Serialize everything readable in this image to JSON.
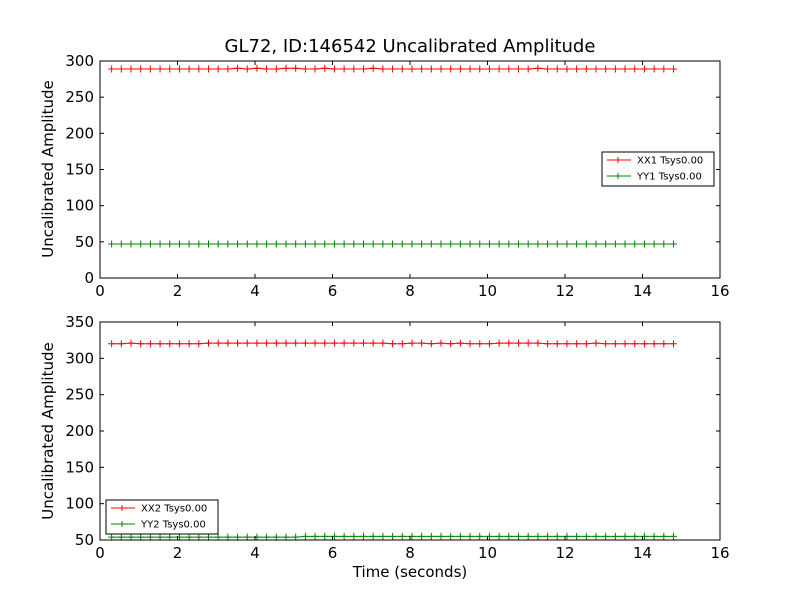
{
  "chart_data": [
    {
      "type": "line",
      "title": "GL72, ID:146542 Uncalibrated Amplitude",
      "xlabel": "",
      "ylabel": "Uncalibrated Amplitude",
      "xlim": [
        0,
        16
      ],
      "ylim": [
        0,
        300
      ],
      "xticks": [
        "0",
        "2",
        "4",
        "6",
        "8",
        "10",
        "12",
        "14",
        "16"
      ],
      "yticks": [
        "0",
        "50",
        "100",
        "150",
        "200",
        "250",
        "300"
      ],
      "legend_position": "center-right",
      "grid": false,
      "series": [
        {
          "name": "XX1 Tsys0.00",
          "color": "#ff0000",
          "marker": "plus",
          "x": [
            0.3,
            0.55,
            0.8,
            1.05,
            1.3,
            1.55,
            1.8,
            2.05,
            2.3,
            2.55,
            2.8,
            3.05,
            3.3,
            3.55,
            3.8,
            4.05,
            4.3,
            4.55,
            4.8,
            5.05,
            5.3,
            5.55,
            5.8,
            6.05,
            6.3,
            6.55,
            6.8,
            7.05,
            7.3,
            7.55,
            7.8,
            8.05,
            8.3,
            8.55,
            8.8,
            9.05,
            9.3,
            9.55,
            9.8,
            10.05,
            10.3,
            10.55,
            10.8,
            11.05,
            11.3,
            11.55,
            11.8,
            12.05,
            12.3,
            12.55,
            12.8,
            13.05,
            13.3,
            13.55,
            13.8,
            14.05,
            14.3,
            14.55,
            14.8
          ],
          "values": [
            289,
            289,
            289,
            289,
            289,
            289,
            289,
            289,
            289,
            289,
            289,
            289,
            289,
            290,
            289,
            290,
            289,
            289,
            290,
            290,
            289,
            289,
            290,
            289,
            289,
            289,
            289,
            290,
            289,
            289,
            289,
            289,
            289,
            289,
            289,
            289,
            289,
            289,
            289,
            289,
            289,
            289,
            289,
            289,
            290,
            289,
            289,
            289,
            289,
            289,
            289,
            289,
            289,
            289,
            289,
            289,
            289,
            289,
            289
          ]
        },
        {
          "name": "YY1 Tsys0.00",
          "color": "#008000",
          "marker": "plus",
          "x": [
            0.3,
            0.55,
            0.8,
            1.05,
            1.3,
            1.55,
            1.8,
            2.05,
            2.3,
            2.55,
            2.8,
            3.05,
            3.3,
            3.55,
            3.8,
            4.05,
            4.3,
            4.55,
            4.8,
            5.05,
            5.3,
            5.55,
            5.8,
            6.05,
            6.3,
            6.55,
            6.8,
            7.05,
            7.3,
            7.55,
            7.8,
            8.05,
            8.3,
            8.55,
            8.8,
            9.05,
            9.3,
            9.55,
            9.8,
            10.05,
            10.3,
            10.55,
            10.8,
            11.05,
            11.3,
            11.55,
            11.8,
            12.05,
            12.3,
            12.55,
            12.8,
            13.05,
            13.3,
            13.55,
            13.8,
            14.05,
            14.3,
            14.55,
            14.8
          ],
          "values": [
            47,
            47,
            47,
            47,
            47,
            47,
            47,
            47,
            47,
            47,
            47,
            47,
            47,
            47,
            47,
            47,
            47,
            47,
            47,
            47,
            47,
            47,
            47,
            47,
            47,
            47,
            47,
            47,
            47,
            47,
            47,
            47,
            47,
            47,
            47,
            47,
            47,
            47,
            47,
            47,
            47,
            47,
            47,
            47,
            47,
            47,
            47,
            47,
            47,
            47,
            47,
            47,
            47,
            47,
            47,
            47,
            47,
            47,
            47
          ]
        }
      ]
    },
    {
      "type": "line",
      "title": "",
      "xlabel": "Time (seconds)",
      "ylabel": "Uncalibrated Amplitude",
      "xlim": [
        0,
        16
      ],
      "ylim": [
        50,
        350
      ],
      "xticks": [
        "0",
        "2",
        "4",
        "6",
        "8",
        "10",
        "12",
        "14",
        "16"
      ],
      "yticks": [
        "50",
        "100",
        "150",
        "200",
        "250",
        "300",
        "350"
      ],
      "legend_position": "lower-left",
      "grid": false,
      "series": [
        {
          "name": "XX2 Tsys0.00",
          "color": "#ff0000",
          "marker": "plus",
          "x": [
            0.3,
            0.55,
            0.8,
            1.05,
            1.3,
            1.55,
            1.8,
            2.05,
            2.3,
            2.55,
            2.8,
            3.05,
            3.3,
            3.55,
            3.8,
            4.05,
            4.3,
            4.55,
            4.8,
            5.05,
            5.3,
            5.55,
            5.8,
            6.05,
            6.3,
            6.55,
            6.8,
            7.05,
            7.3,
            7.55,
            7.8,
            8.05,
            8.3,
            8.55,
            8.8,
            9.05,
            9.3,
            9.55,
            9.8,
            10.05,
            10.3,
            10.55,
            10.8,
            11.05,
            11.3,
            11.55,
            11.8,
            12.05,
            12.3,
            12.55,
            12.8,
            13.05,
            13.3,
            13.55,
            13.8,
            14.05,
            14.3,
            14.55,
            14.8
          ],
          "values": [
            320,
            320,
            321,
            320,
            320,
            320,
            320,
            320,
            320,
            320,
            321,
            321,
            321,
            321,
            321,
            321,
            321,
            321,
            321,
            321,
            321,
            321,
            321,
            321,
            321,
            321,
            321,
            321,
            321,
            320,
            320,
            321,
            321,
            320,
            321,
            320,
            321,
            320,
            320,
            320,
            321,
            321,
            321,
            321,
            321,
            320,
            320,
            320,
            320,
            320,
            321,
            320,
            320,
            320,
            320,
            320,
            320,
            320,
            320
          ]
        },
        {
          "name": "YY2 Tsys0.00",
          "color": "#008000",
          "marker": "plus",
          "x": [
            0.3,
            0.55,
            0.8,
            1.05,
            1.3,
            1.55,
            1.8,
            2.05,
            2.3,
            2.55,
            2.8,
            3.05,
            3.3,
            3.55,
            3.8,
            4.05,
            4.3,
            4.55,
            4.8,
            5.05,
            5.3,
            5.55,
            5.8,
            6.05,
            6.3,
            6.55,
            6.8,
            7.05,
            7.3,
            7.55,
            7.8,
            8.05,
            8.3,
            8.55,
            8.8,
            9.05,
            9.3,
            9.55,
            9.8,
            10.05,
            10.3,
            10.55,
            10.8,
            11.05,
            11.3,
            11.55,
            11.8,
            12.05,
            12.3,
            12.55,
            12.8,
            13.05,
            13.3,
            13.55,
            13.8,
            14.05,
            14.3,
            14.55,
            14.8
          ],
          "values": [
            54,
            54,
            54,
            54,
            54,
            54,
            54,
            54,
            54,
            54,
            54,
            54,
            54,
            54,
            54,
            54,
            54,
            54,
            54,
            54,
            55,
            55,
            55,
            55,
            55,
            55,
            55,
            55,
            55,
            55,
            55,
            55,
            55,
            55,
            55,
            55,
            55,
            55,
            55,
            55,
            55,
            55,
            55,
            55,
            55,
            55,
            55,
            55,
            55,
            55,
            55,
            55,
            55,
            55,
            55,
            55,
            55,
            55,
            55
          ]
        }
      ]
    }
  ]
}
